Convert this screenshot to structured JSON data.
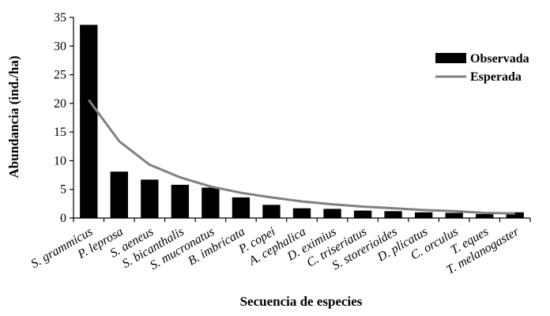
{
  "chart_data": {
    "type": "bar",
    "xlabel": "Secuencia de especies",
    "ylabel": "Abundancia (ind./ha)",
    "ylim": [
      0,
      35
    ],
    "yticks": [
      0,
      5,
      10,
      15,
      20,
      25,
      30,
      35
    ],
    "categories": [
      "S. grammicus",
      "P. leprosa",
      "S. aeneus",
      "S. bicanthalis",
      "S. mucronatus",
      "B. imbricata",
      "P. copei",
      "A. cephalica",
      "D. eximius",
      "C. triseriatus",
      "S. storerioides",
      "D. plicatus",
      "C. orculus",
      "T. eques",
      "T. melanogaster"
    ],
    "series": [
      {
        "name": "Observada",
        "kind": "bar",
        "color": "#000000",
        "values": [
          33.7,
          8.1,
          6.7,
          5.8,
          5.3,
          3.6,
          2.3,
          1.7,
          1.6,
          1.3,
          1.2,
          1.0,
          0.9,
          0.7,
          1.0
        ]
      },
      {
        "name": "Esperada",
        "kind": "line",
        "color": "#808080",
        "values": [
          20.6,
          13.4,
          9.3,
          7.1,
          5.5,
          4.4,
          3.6,
          2.9,
          2.4,
          2.0,
          1.7,
          1.4,
          1.2,
          0.9,
          0.8
        ]
      }
    ],
    "grid": false,
    "legend_position": "top-right"
  }
}
